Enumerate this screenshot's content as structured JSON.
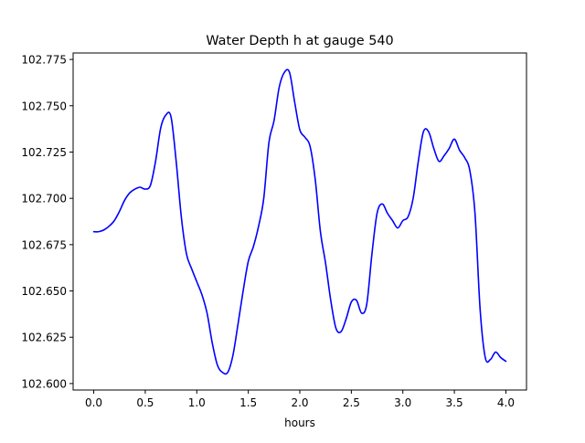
{
  "chart_data": {
    "type": "line",
    "title": "Water Depth h at gauge 540",
    "xlabel": "hours",
    "ylabel": "",
    "xlim": [
      -0.2,
      4.2
    ],
    "ylim": [
      102.5965,
      102.7785
    ],
    "x_ticks": [
      0.0,
      0.5,
      1.0,
      1.5,
      2.0,
      2.5,
      3.0,
      3.5,
      4.0
    ],
    "x_tick_labels": [
      "0.0",
      "0.5",
      "1.0",
      "1.5",
      "2.0",
      "2.5",
      "3.0",
      "3.5",
      "4.0"
    ],
    "y_ticks": [
      102.6,
      102.625,
      102.65,
      102.675,
      102.7,
      102.725,
      102.75,
      102.775
    ],
    "y_tick_labels": [
      "102.600",
      "102.625",
      "102.650",
      "102.675",
      "102.700",
      "102.725",
      "102.750",
      "102.775"
    ],
    "grid": false,
    "series": [
      {
        "color": "#0000ff",
        "x": [
          0.0,
          0.05,
          0.1,
          0.15,
          0.2,
          0.25,
          0.3,
          0.35,
          0.4,
          0.45,
          0.5,
          0.55,
          0.6,
          0.65,
          0.7,
          0.75,
          0.8,
          0.85,
          0.9,
          0.95,
          1.0,
          1.05,
          1.1,
          1.15,
          1.2,
          1.25,
          1.3,
          1.35,
          1.4,
          1.45,
          1.5,
          1.55,
          1.6,
          1.65,
          1.7,
          1.75,
          1.8,
          1.85,
          1.9,
          1.95,
          2.0,
          2.05,
          2.1,
          2.15,
          2.2,
          2.25,
          2.3,
          2.35,
          2.4,
          2.45,
          2.5,
          2.55,
          2.6,
          2.65,
          2.7,
          2.75,
          2.8,
          2.85,
          2.9,
          2.95,
          3.0,
          3.05,
          3.1,
          3.15,
          3.2,
          3.25,
          3.3,
          3.35,
          3.4,
          3.45,
          3.5,
          3.55,
          3.6,
          3.65,
          3.7,
          3.75,
          3.8,
          3.85,
          3.9,
          3.95,
          4.0
        ],
        "values": [
          102.682,
          102.682,
          102.683,
          102.685,
          102.688,
          102.693,
          102.699,
          102.703,
          102.705,
          102.706,
          102.705,
          102.707,
          102.72,
          102.738,
          102.745,
          102.744,
          102.72,
          102.69,
          102.67,
          102.662,
          102.655,
          102.648,
          102.638,
          102.622,
          102.61,
          102.606,
          102.606,
          102.615,
          102.632,
          102.65,
          102.666,
          102.674,
          102.685,
          102.7,
          102.73,
          102.742,
          102.76,
          102.768,
          102.768,
          102.752,
          102.737,
          102.733,
          102.728,
          102.71,
          102.682,
          102.665,
          102.645,
          102.63,
          102.628,
          102.635,
          102.644,
          102.645,
          102.638,
          102.643,
          102.67,
          102.692,
          102.697,
          102.692,
          102.688,
          102.684,
          102.688,
          102.69,
          102.7,
          102.72,
          102.736,
          102.736,
          102.727,
          102.72,
          102.723,
          102.727,
          102.732,
          102.726,
          102.722,
          102.715,
          102.692,
          102.64,
          102.614,
          102.613,
          102.617,
          102.614,
          102.612
        ]
      }
    ]
  }
}
